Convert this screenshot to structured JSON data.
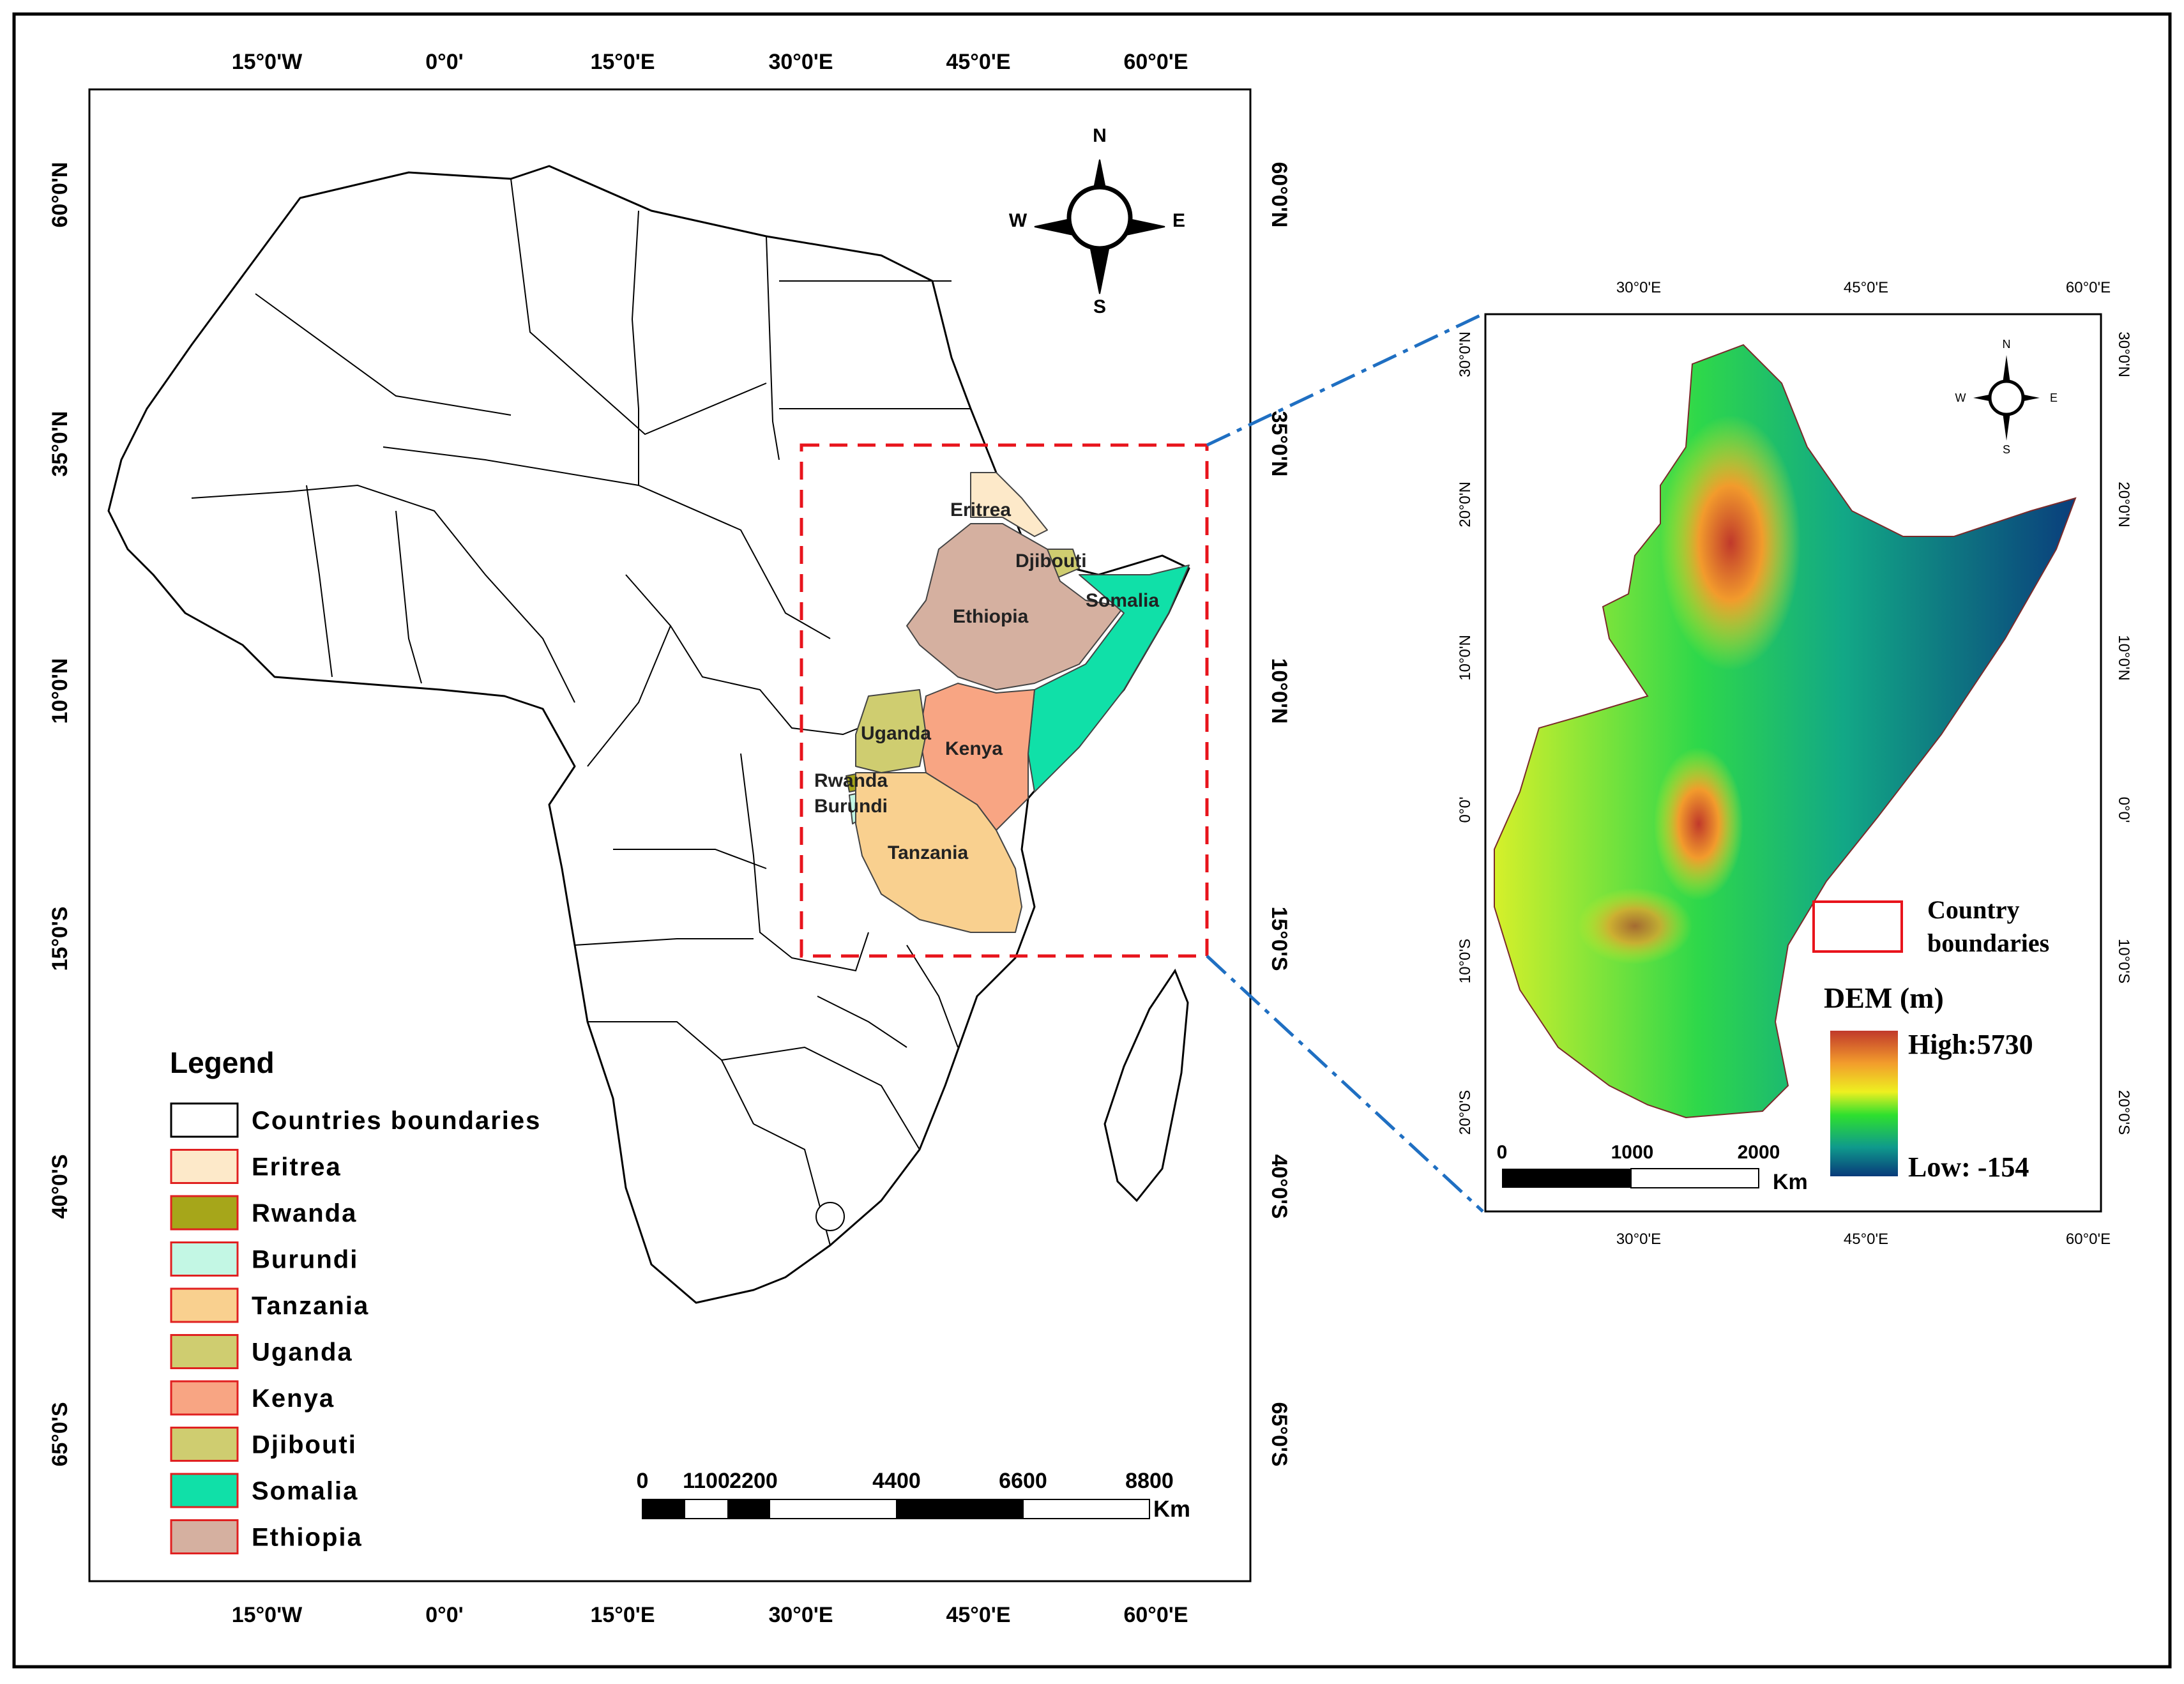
{
  "main_map": {
    "top_lon_labels": [
      "15°0'W",
      "0°0'",
      "15°0'E",
      "30°0'E",
      "45°0'E",
      "60°0'E"
    ],
    "bottom_lon_labels": [
      "15°0'W",
      "0°0'",
      "15°0'E",
      "30°0'E",
      "45°0'E",
      "60°0'E"
    ],
    "left_lat_labels": [
      "60°0'N",
      "35°0'N",
      "10°0'N",
      "15°0'S",
      "40°0'S",
      "65°0'S"
    ],
    "right_lat_labels": [
      "60°0'N",
      "35°0'N",
      "10°0'N",
      "15°0'S",
      "40°0'S",
      "65°0'S"
    ],
    "compass": {
      "n": "N",
      "s": "S",
      "e": "E",
      "w": "W"
    },
    "country_labels": {
      "eritrea": "Eritrea",
      "djibouti": "Djibouti",
      "somalia": "Somalia",
      "ethiopia": "Ethiopia",
      "uganda": "Uganda",
      "kenya": "Kenya",
      "rwanda": "Rwanda",
      "burundi": "Burundi",
      "tanzania": "Tanzania"
    },
    "scale_bar": {
      "labels": [
        "0",
        "1100",
        "2200",
        "4400",
        "6600",
        "8800"
      ],
      "unit": "Km"
    }
  },
  "legend": {
    "title": "Legend",
    "items": [
      {
        "label": "Countries boundaries",
        "fill": "#ffffff",
        "stroke": "#000000"
      },
      {
        "label": "Eritrea",
        "fill": "#fde9c9",
        "stroke": "#e02020"
      },
      {
        "label": "Rwanda",
        "fill": "#a6a61a",
        "stroke": "#e02020"
      },
      {
        "label": "Burundi",
        "fill": "#c3f7e4",
        "stroke": "#e02020"
      },
      {
        "label": "Tanzania",
        "fill": "#f9d08f",
        "stroke": "#e02020"
      },
      {
        "label": "Uganda",
        "fill": "#cfcd70",
        "stroke": "#e02020"
      },
      {
        "label": "Kenya",
        "fill": "#f8a583",
        "stroke": "#e02020"
      },
      {
        "label": "Djibouti",
        "fill": "#cfcd70",
        "stroke": "#e02020"
      },
      {
        "label": "Somalia",
        "fill": "#10e0a8",
        "stroke": "#e02020"
      },
      {
        "label": "Ethiopia",
        "fill": "#d5b0a0",
        "stroke": "#e02020"
      }
    ]
  },
  "inset_map": {
    "top_lon_labels": [
      "30°0'E",
      "45°0'E",
      "60°0'E"
    ],
    "bottom_lon_labels": [
      "30°0'E",
      "45°0'E",
      "60°0'E"
    ],
    "left_lat_labels": [
      "30°0'N",
      "20°0'N",
      "10°0'N",
      "0°0'",
      "10°0'S",
      "20°0'S"
    ],
    "right_lat_labels": [
      "30°0'N",
      "20°0'N",
      "10°0'N",
      "0°0'",
      "10°0'S",
      "20°0'S"
    ],
    "compass": {
      "n": "N",
      "s": "S",
      "e": "E",
      "w": "W"
    },
    "boundary_legend_label_1": "Country",
    "boundary_legend_label_2": "boundaries",
    "dem_title": "DEM (m)",
    "dem_high": "High:5730",
    "dem_low": "Low: -154",
    "scale_bar": {
      "labels": [
        "0",
        "1000",
        "2000"
      ],
      "unit": "Km"
    }
  },
  "colors": {
    "frame": "#000000",
    "extent_box": "#e8141c",
    "leader_line": "#1f6fc2",
    "dem_high": "#c0392b",
    "dem_mid": "#2ee02e",
    "dem_low": "#083a7a"
  }
}
